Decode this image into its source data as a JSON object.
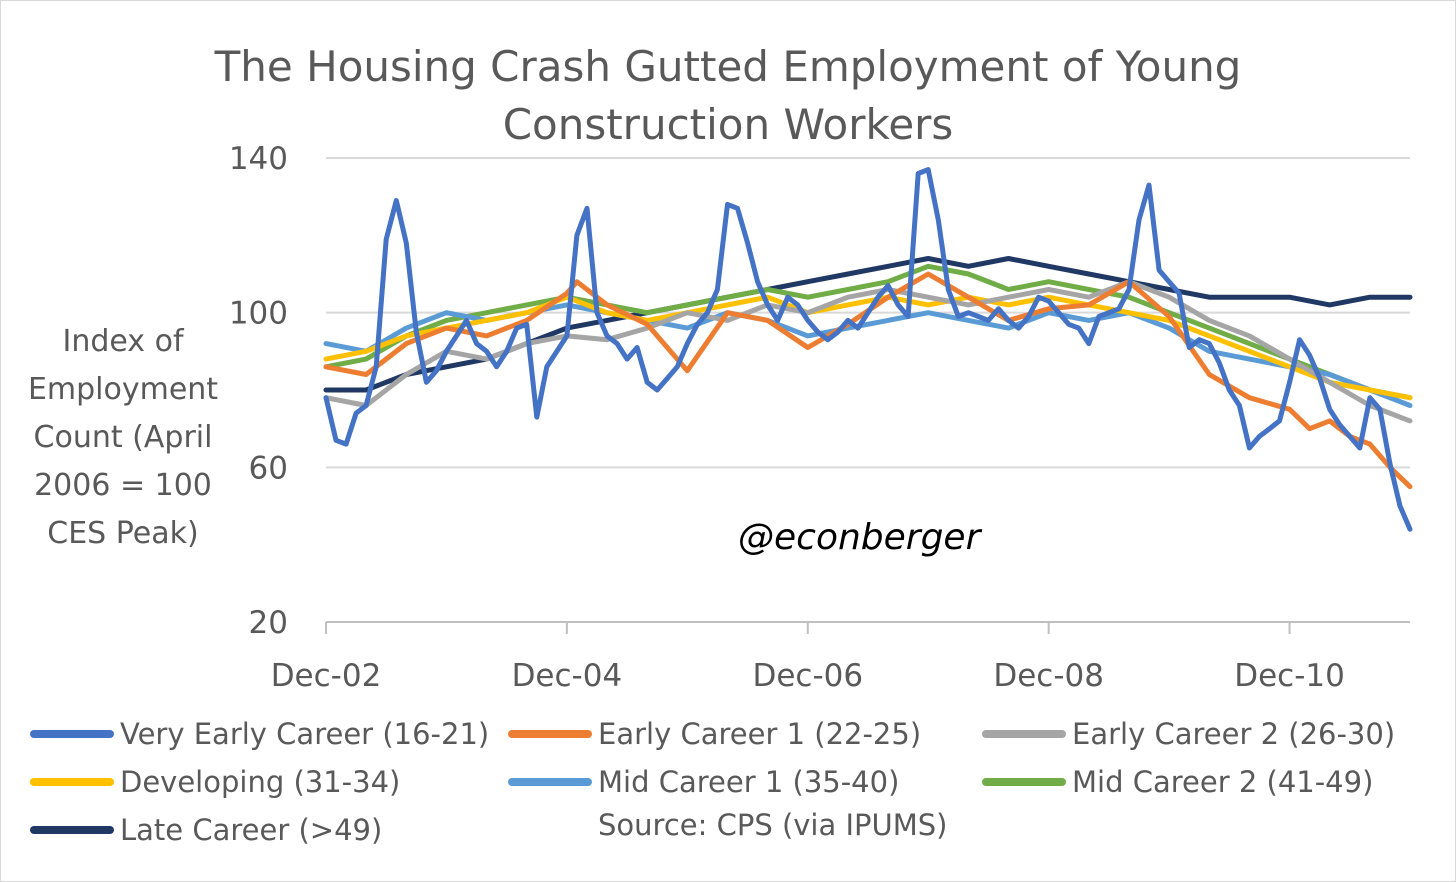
{
  "chart_data": {
    "type": "line",
    "title": "The Housing Crash Gutted Employment of Young\nConstruction Workers",
    "ylabel": "Index of Employment Count (April 2006 = 100 CES Peak)",
    "xlabel": "",
    "ylim": [
      20,
      140
    ],
    "yticks": [
      20,
      60,
      100,
      140
    ],
    "xlim": [
      0,
      108
    ],
    "xticks": [
      {
        "label": "Dec-02",
        "at": 0
      },
      {
        "label": "Dec-04",
        "at": 24
      },
      {
        "label": "Dec-06",
        "at": 48
      },
      {
        "label": "Dec-08",
        "at": 72
      },
      {
        "label": "Dec-10",
        "at": 96
      }
    ],
    "grid": true,
    "legend_position": "bottom",
    "series": [
      {
        "name": "Very Early Career (16-21)",
        "color": "#4472c4",
        "anchors": [
          [
            0,
            78
          ],
          [
            1,
            67
          ],
          [
            2,
            66
          ],
          [
            3,
            74
          ],
          [
            4,
            76
          ],
          [
            5,
            86
          ],
          [
            6,
            119
          ],
          [
            7,
            129
          ],
          [
            8,
            118
          ],
          [
            9,
            95
          ],
          [
            10,
            82
          ],
          [
            11,
            85
          ],
          [
            12,
            90
          ],
          [
            13,
            94
          ],
          [
            14,
            98
          ],
          [
            15,
            92
          ],
          [
            16,
            90
          ],
          [
            17,
            86
          ],
          [
            18,
            90
          ],
          [
            19,
            96
          ],
          [
            20,
            97
          ],
          [
            21,
            73
          ],
          [
            22,
            86
          ],
          [
            23,
            90
          ],
          [
            24,
            94
          ],
          [
            25,
            120
          ],
          [
            26,
            127
          ],
          [
            27,
            100
          ],
          [
            28,
            94
          ],
          [
            29,
            92
          ],
          [
            30,
            88
          ],
          [
            31,
            91
          ],
          [
            32,
            82
          ],
          [
            33,
            80
          ],
          [
            34,
            83
          ],
          [
            35,
            86
          ],
          [
            36,
            92
          ],
          [
            37,
            97
          ],
          [
            38,
            100
          ],
          [
            39,
            106
          ],
          [
            40,
            128
          ],
          [
            41,
            127
          ],
          [
            42,
            118
          ],
          [
            43,
            108
          ],
          [
            44,
            102
          ],
          [
            45,
            98
          ],
          [
            46,
            104
          ],
          [
            47,
            102
          ],
          [
            48,
            98
          ],
          [
            49,
            95
          ],
          [
            50,
            93
          ],
          [
            51,
            95
          ],
          [
            52,
            98
          ],
          [
            53,
            96
          ],
          [
            54,
            100
          ],
          [
            55,
            104
          ],
          [
            56,
            107
          ],
          [
            57,
            102
          ],
          [
            58,
            99
          ],
          [
            59,
            136
          ],
          [
            60,
            137
          ],
          [
            61,
            124
          ],
          [
            62,
            106
          ],
          [
            63,
            99
          ],
          [
            64,
            100
          ],
          [
            65,
            99
          ],
          [
            66,
            98
          ],
          [
            67,
            101
          ],
          [
            68,
            98
          ],
          [
            69,
            96
          ],
          [
            70,
            99
          ],
          [
            71,
            104
          ],
          [
            72,
            103
          ],
          [
            73,
            100
          ],
          [
            74,
            97
          ],
          [
            75,
            96
          ],
          [
            76,
            92
          ],
          [
            77,
            99
          ],
          [
            78,
            100
          ],
          [
            79,
            101
          ],
          [
            80,
            106
          ],
          [
            81,
            124
          ],
          [
            82,
            133
          ],
          [
            83,
            111
          ],
          [
            84,
            108
          ],
          [
            85,
            105
          ],
          [
            86,
            91
          ],
          [
            87,
            93
          ],
          [
            88,
            92
          ],
          [
            89,
            87
          ],
          [
            90,
            80
          ],
          [
            91,
            76
          ],
          [
            92,
            65
          ],
          [
            93,
            68
          ],
          [
            94,
            70
          ],
          [
            95,
            72
          ],
          [
            96,
            82
          ],
          [
            97,
            93
          ],
          [
            98,
            89
          ],
          [
            99,
            83
          ],
          [
            100,
            75
          ],
          [
            101,
            71
          ],
          [
            102,
            68
          ],
          [
            103,
            65
          ],
          [
            104,
            78
          ],
          [
            105,
            75
          ],
          [
            106,
            61
          ],
          [
            107,
            50
          ],
          [
            108,
            44
          ]
        ]
      },
      {
        "name": "Early Career 1 (22-25)",
        "color": "#ed7d31",
        "anchors": [
          [
            0,
            86
          ],
          [
            4,
            84
          ],
          [
            8,
            92
          ],
          [
            12,
            96
          ],
          [
            16,
            94
          ],
          [
            20,
            98
          ],
          [
            24,
            105
          ],
          [
            25,
            108
          ],
          [
            28,
            102
          ],
          [
            32,
            97
          ],
          [
            36,
            85
          ],
          [
            40,
            100
          ],
          [
            44,
            98
          ],
          [
            48,
            91
          ],
          [
            52,
            97
          ],
          [
            56,
            104
          ],
          [
            60,
            110
          ],
          [
            64,
            104
          ],
          [
            68,
            98
          ],
          [
            72,
            101
          ],
          [
            76,
            102
          ],
          [
            80,
            108
          ],
          [
            84,
            99
          ],
          [
            88,
            84
          ],
          [
            92,
            78
          ],
          [
            96,
            75
          ],
          [
            98,
            70
          ],
          [
            100,
            72
          ],
          [
            102,
            68
          ],
          [
            104,
            66
          ],
          [
            106,
            60
          ],
          [
            108,
            55
          ]
        ]
      },
      {
        "name": "Early Career 2 (26-30)",
        "color": "#a5a5a5",
        "anchors": [
          [
            0,
            78
          ],
          [
            4,
            76
          ],
          [
            8,
            84
          ],
          [
            12,
            90
          ],
          [
            16,
            88
          ],
          [
            20,
            92
          ],
          [
            24,
            94
          ],
          [
            28,
            93
          ],
          [
            32,
            96
          ],
          [
            36,
            100
          ],
          [
            40,
            98
          ],
          [
            44,
            102
          ],
          [
            48,
            100
          ],
          [
            52,
            104
          ],
          [
            56,
            106
          ],
          [
            60,
            104
          ],
          [
            64,
            102
          ],
          [
            68,
            104
          ],
          [
            72,
            106
          ],
          [
            76,
            104
          ],
          [
            80,
            108
          ],
          [
            84,
            104
          ],
          [
            88,
            98
          ],
          [
            92,
            94
          ],
          [
            96,
            88
          ],
          [
            100,
            82
          ],
          [
            104,
            76
          ],
          [
            108,
            72
          ]
        ]
      },
      {
        "name": "Developing (31-34)",
        "color": "#ffc000",
        "anchors": [
          [
            0,
            88
          ],
          [
            4,
            90
          ],
          [
            8,
            94
          ],
          [
            12,
            96
          ],
          [
            16,
            98
          ],
          [
            20,
            100
          ],
          [
            24,
            104
          ],
          [
            28,
            100
          ],
          [
            32,
            98
          ],
          [
            36,
            100
          ],
          [
            40,
            102
          ],
          [
            44,
            104
          ],
          [
            48,
            100
          ],
          [
            52,
            102
          ],
          [
            56,
            104
          ],
          [
            60,
            102
          ],
          [
            64,
            104
          ],
          [
            68,
            102
          ],
          [
            72,
            104
          ],
          [
            76,
            102
          ],
          [
            80,
            100
          ],
          [
            84,
            98
          ],
          [
            88,
            94
          ],
          [
            92,
            90
          ],
          [
            96,
            86
          ],
          [
            100,
            82
          ],
          [
            104,
            80
          ],
          [
            108,
            78
          ]
        ]
      },
      {
        "name": "Mid Career 1 (35-40)",
        "color": "#5b9bd5",
        "anchors": [
          [
            0,
            92
          ],
          [
            4,
            90
          ],
          [
            8,
            96
          ],
          [
            12,
            100
          ],
          [
            16,
            98
          ],
          [
            20,
            100
          ],
          [
            24,
            102
          ],
          [
            28,
            100
          ],
          [
            32,
            98
          ],
          [
            36,
            96
          ],
          [
            40,
            100
          ],
          [
            44,
            98
          ],
          [
            48,
            94
          ],
          [
            52,
            96
          ],
          [
            56,
            98
          ],
          [
            60,
            100
          ],
          [
            64,
            98
          ],
          [
            68,
            96
          ],
          [
            72,
            100
          ],
          [
            76,
            98
          ],
          [
            80,
            100
          ],
          [
            84,
            96
          ],
          [
            88,
            90
          ],
          [
            92,
            88
          ],
          [
            96,
            86
          ],
          [
            100,
            84
          ],
          [
            104,
            80
          ],
          [
            108,
            76
          ]
        ]
      },
      {
        "name": "Mid Career 2 (41-49)",
        "color": "#70ad47",
        "anchors": [
          [
            0,
            86
          ],
          [
            4,
            88
          ],
          [
            8,
            94
          ],
          [
            12,
            98
          ],
          [
            16,
            100
          ],
          [
            20,
            102
          ],
          [
            24,
            104
          ],
          [
            28,
            102
          ],
          [
            32,
            100
          ],
          [
            36,
            102
          ],
          [
            40,
            104
          ],
          [
            44,
            106
          ],
          [
            48,
            104
          ],
          [
            52,
            106
          ],
          [
            56,
            108
          ],
          [
            60,
            112
          ],
          [
            64,
            110
          ],
          [
            68,
            106
          ],
          [
            72,
            108
          ],
          [
            76,
            106
          ],
          [
            80,
            104
          ],
          [
            84,
            100
          ],
          [
            88,
            96
          ],
          [
            92,
            92
          ],
          [
            96,
            88
          ],
          [
            100,
            84
          ],
          [
            104,
            80
          ],
          [
            108,
            78
          ]
        ]
      },
      {
        "name": "Late Career (>49)",
        "color": "#203864",
        "anchors": [
          [
            0,
            80
          ],
          [
            4,
            80
          ],
          [
            8,
            84
          ],
          [
            12,
            86
          ],
          [
            16,
            88
          ],
          [
            20,
            92
          ],
          [
            24,
            96
          ],
          [
            28,
            98
          ],
          [
            32,
            100
          ],
          [
            36,
            102
          ],
          [
            40,
            104
          ],
          [
            44,
            106
          ],
          [
            48,
            108
          ],
          [
            52,
            110
          ],
          [
            56,
            112
          ],
          [
            60,
            114
          ],
          [
            64,
            112
          ],
          [
            68,
            114
          ],
          [
            72,
            112
          ],
          [
            76,
            110
          ],
          [
            80,
            108
          ],
          [
            84,
            106
          ],
          [
            88,
            104
          ],
          [
            92,
            104
          ],
          [
            96,
            104
          ],
          [
            100,
            102
          ],
          [
            104,
            104
          ],
          [
            108,
            104
          ]
        ]
      }
    ]
  },
  "legend": {
    "items": [
      "Very Early Career (16-21)",
      "Early Career 1 (22-25)",
      "Early Career 2 (26-30)",
      "Developing (31-34)",
      "Mid Career 1 (35-40)",
      "Mid Career 2 (41-49)",
      "Late Career (>49)"
    ],
    "source": "Source: CPS (via IPUMS)"
  },
  "watermark": "@econberger"
}
